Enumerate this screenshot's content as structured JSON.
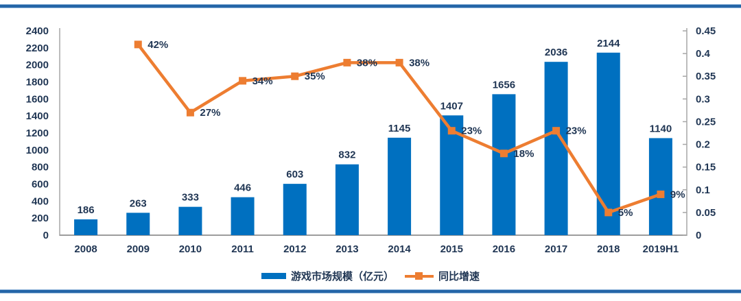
{
  "page": {
    "background": "#ffffff",
    "border_line_color": "#2465a7"
  },
  "chart_data": {
    "type": "bar+line",
    "categories": [
      "2008",
      "2009",
      "2010",
      "2011",
      "2012",
      "2013",
      "2014",
      "2015",
      "2016",
      "2017",
      "2018",
      "2019H1"
    ],
    "series": [
      {
        "name": "游戏市场规模（亿元）",
        "type": "bar",
        "axis": "left",
        "values": [
          186,
          263,
          333,
          446,
          603,
          832,
          1145,
          1407,
          1656,
          2036,
          2144,
          1140
        ]
      },
      {
        "name": "同比增速",
        "type": "line",
        "axis": "right",
        "values": [
          null,
          0.42,
          0.27,
          0.34,
          0.35,
          0.38,
          0.38,
          0.23,
          0.18,
          0.23,
          0.05,
          0.09
        ],
        "labels": [
          null,
          "42%",
          "27%",
          "34%",
          "35%",
          "38%",
          "38%",
          "23%",
          "18%",
          "23%",
          "5%",
          "9%"
        ]
      }
    ],
    "left_axis": {
      "min": 0,
      "max": 2400,
      "step": 200,
      "tick_labels": [
        "0",
        "200",
        "400",
        "600",
        "800",
        "1000",
        "1200",
        "1400",
        "1600",
        "1800",
        "2000",
        "2200",
        "2400"
      ]
    },
    "right_axis": {
      "min": 0,
      "max": 0.45,
      "step": 0.05,
      "tick_labels": [
        "0",
        "0.05",
        "0.1",
        "0.15",
        "0.2",
        "0.25",
        "0.3",
        "0.35",
        "0.4",
        "0.45"
      ]
    },
    "legend": {
      "position": "bottom"
    },
    "grid": "off",
    "styles": {
      "bar_color": "#0070c0",
      "line_color": "#ed7d31",
      "label_color": "#1f3553",
      "axis_line_color": "#a6a6a6",
      "bottom_axis_color": "#9c9c9c"
    }
  }
}
